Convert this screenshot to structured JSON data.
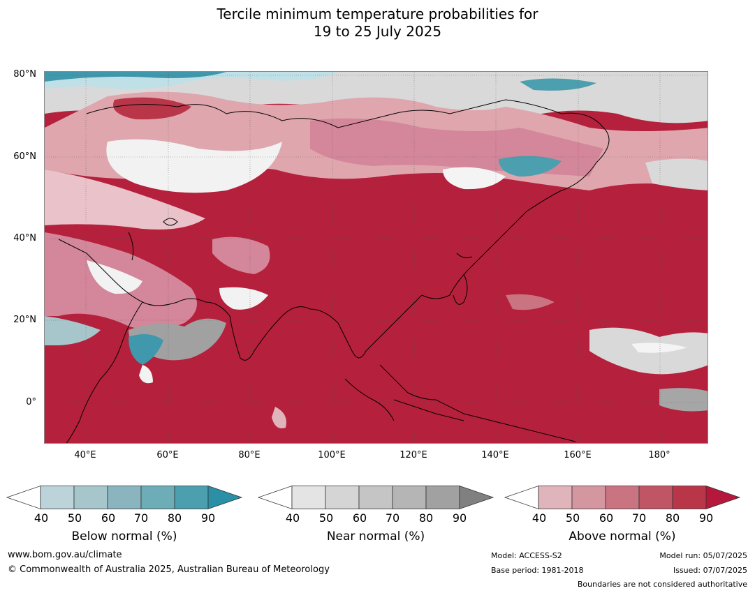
{
  "title": {
    "line1": "Tercile minimum temperature probabilities for",
    "line2": "19 to 25 July 2025"
  },
  "map": {
    "region": "Asia, Indian Ocean, Western Pacific",
    "lat_labels": [
      "80°N",
      "60°N",
      "40°N",
      "20°N",
      "0°"
    ],
    "lon_labels": [
      "40°E",
      "60°E",
      "80°E",
      "100°E",
      "120°E",
      "140°E",
      "160°E",
      "180°"
    ],
    "dominant_category": "Above normal",
    "dominant_color": "#b5203c"
  },
  "colorbars": [
    {
      "title": "Below normal (%)",
      "ticks": [
        "40",
        "50",
        "60",
        "70",
        "80",
        "90"
      ],
      "colors": [
        "#ffffff",
        "#bdd3da",
        "#a6c6cc",
        "#8ab5be",
        "#6dadb8",
        "#4b9fae",
        "#2b8fa6"
      ]
    },
    {
      "title": "Near normal (%)",
      "ticks": [
        "40",
        "50",
        "60",
        "70",
        "80",
        "90"
      ],
      "colors": [
        "#ffffff",
        "#e4e4e4",
        "#d5d5d5",
        "#c5c5c5",
        "#b5b5b5",
        "#a1a1a1",
        "#808080"
      ]
    },
    {
      "title": "Above normal (%)",
      "ticks": [
        "40",
        "50",
        "60",
        "70",
        "80",
        "90"
      ],
      "colors": [
        "#ffffff",
        "#e0b4bb",
        "#d4969f",
        "#c97480",
        "#c05566",
        "#b93649",
        "#b5183a"
      ]
    }
  ],
  "footer": {
    "website": "www.bom.gov.au/climate",
    "copyright": "© Commonwealth of Australia 2025, Australian Bureau of Meteorology",
    "model": "Model: ACCESS-S2",
    "base_period": "Base period: 1981-2018",
    "model_run": "Model run: 05/07/2025",
    "issued": "Issued: 07/07/2025",
    "disclaimer": "Boundaries are not considered authoritative"
  }
}
